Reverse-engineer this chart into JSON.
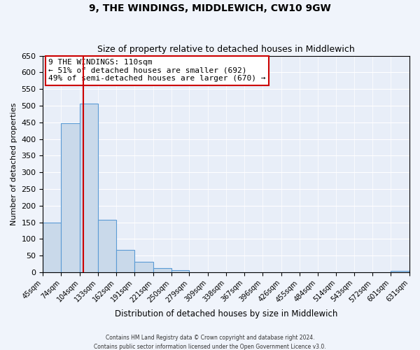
{
  "title": "9, THE WINDINGS, MIDDLEWICH, CW10 9GW",
  "subtitle": "Size of property relative to detached houses in Middlewich",
  "xlabel": "Distribution of detached houses by size in Middlewich",
  "ylabel": "Number of detached properties",
  "bar_color": "#c9d9ea",
  "bar_edge_color": "#5b9bd5",
  "background_color": "#e8eef8",
  "fig_background": "#f0f4fb",
  "bins": [
    45,
    74,
    104,
    133,
    162,
    191,
    221,
    250,
    279,
    309,
    338,
    367,
    396,
    426,
    455,
    484,
    514,
    543,
    572,
    601,
    631
  ],
  "bin_labels": [
    "45sqm",
    "74sqm",
    "104sqm",
    "133sqm",
    "162sqm",
    "191sqm",
    "221sqm",
    "250sqm",
    "279sqm",
    "309sqm",
    "338sqm",
    "367sqm",
    "396sqm",
    "426sqm",
    "455sqm",
    "484sqm",
    "514sqm",
    "543sqm",
    "572sqm",
    "601sqm",
    "631sqm"
  ],
  "values": [
    148,
    448,
    506,
    158,
    67,
    31,
    13,
    6,
    0,
    0,
    0,
    0,
    0,
    0,
    0,
    0,
    0,
    0,
    0,
    4
  ],
  "ylim": [
    0,
    650
  ],
  "yticks": [
    0,
    50,
    100,
    150,
    200,
    250,
    300,
    350,
    400,
    450,
    500,
    550,
    600,
    650
  ],
  "vline_x": 110,
  "vline_color": "#cc0000",
  "annotation_title": "9 THE WINDINGS: 110sqm",
  "annotation_line1": "← 51% of detached houses are smaller (692)",
  "annotation_line2": "49% of semi-detached houses are larger (670) →",
  "annotation_box_color": "#ffffff",
  "annotation_box_edge": "#cc0000",
  "footer1": "Contains HM Land Registry data © Crown copyright and database right 2024.",
  "footer2": "Contains public sector information licensed under the Open Government Licence v3.0."
}
